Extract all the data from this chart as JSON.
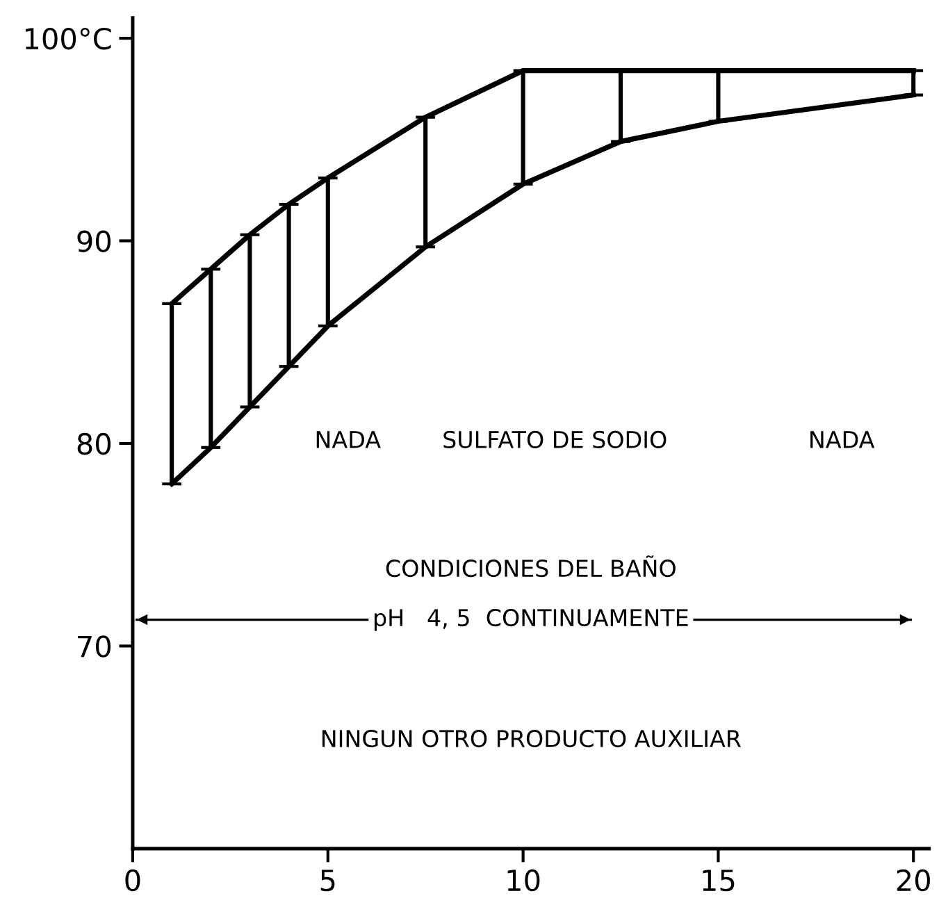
{
  "chart_data": {
    "type": "line",
    "x": [
      1,
      2,
      3,
      4,
      5,
      7.5,
      10,
      12.5,
      15,
      20
    ],
    "series": [
      {
        "color": "#000000",
        "values": [
          86.9,
          88.6,
          90.3,
          91.8,
          93.1,
          96.1,
          98.4,
          98.4,
          98.4,
          98.4
        ],
        "errors": [
          [
            78.0,
            86.9
          ],
          [
            79.8,
            88.6
          ],
          [
            81.8,
            90.3
          ],
          [
            83.8,
            91.8
          ],
          [
            85.8,
            93.1
          ],
          [
            89.7,
            96.1
          ],
          [
            92.8,
            98.4
          ],
          [
            94.9,
            98.4
          ],
          [
            95.9,
            98.4
          ],
          [
            97.2,
            98.4
          ]
        ]
      },
      {
        "color": "#000000",
        "values": [
          78.0,
          79.8,
          81.8,
          83.8,
          85.8,
          89.7,
          92.8,
          94.9,
          95.9,
          97.2
        ]
      }
    ],
    "xlim": [
      0,
      20.4
    ],
    "ylim": [
      60,
      101
    ],
    "xticks": [
      0,
      5,
      10,
      15,
      20
    ],
    "yticks": [
      70,
      80,
      90,
      {
        "value": 100,
        "label": "100°C"
      }
    ],
    "ref_lines": [
      {
        "axis": "y",
        "value": 71.3,
        "label": "pH   4, 5  CONTINUAMENTE",
        "color": "#000000",
        "line_style": "solid"
      }
    ],
    "marker": "none",
    "line_style": "solid",
    "annotations": [
      "NADA",
      "SULFATO DE SODIO",
      "NADA",
      "CONDICIONES DEL BAÑO",
      "NINGUN OTRO PRODUCTO AUXILIAR"
    ]
  }
}
